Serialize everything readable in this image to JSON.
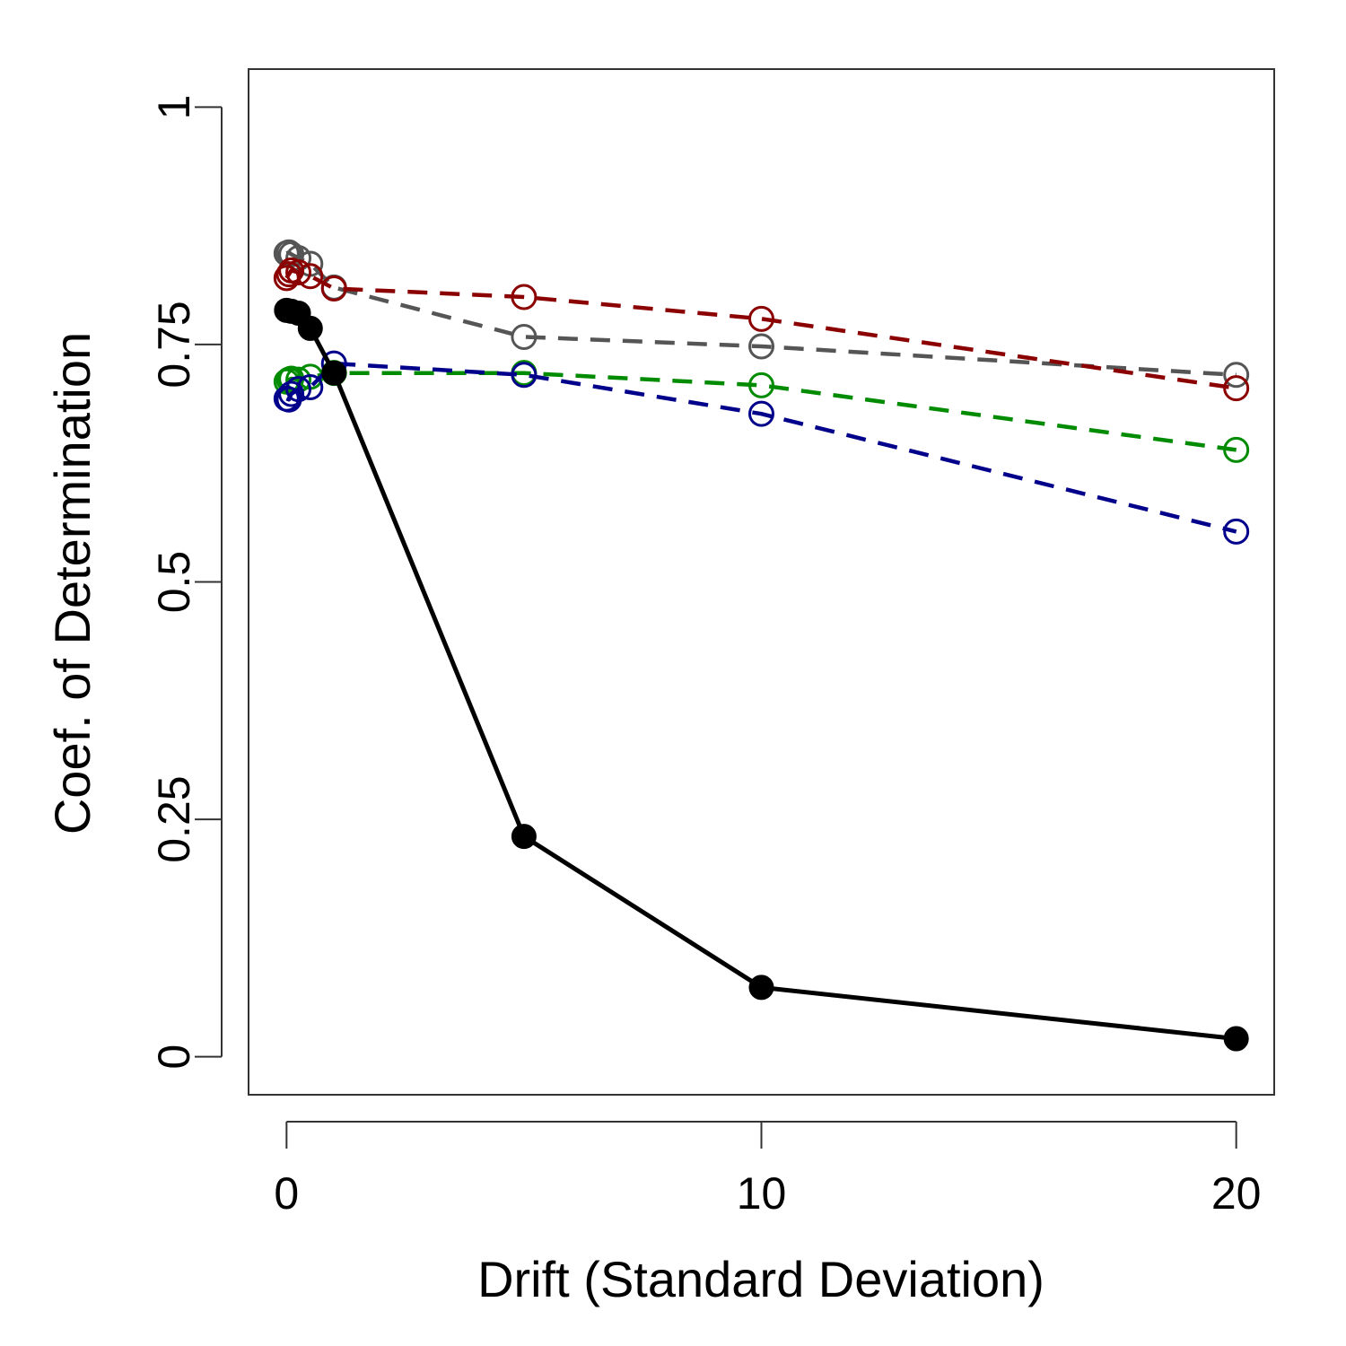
{
  "chart_data": {
    "type": "line",
    "xlabel": "Drift (Standard Deviation)",
    "ylabel": "Coef. of Determination",
    "xlim": [
      -0.8,
      20.8
    ],
    "ylim": [
      -0.04,
      1.04
    ],
    "xticks": [
      0,
      10,
      20
    ],
    "xtick_labels": [
      "0",
      "10",
      "20"
    ],
    "yticks": [
      0,
      0.25,
      0.5,
      0.75,
      1
    ],
    "ytick_labels": [
      "0",
      "0.25",
      "0.5",
      "0.75",
      "1"
    ],
    "grid": false,
    "legend": "none",
    "series": [
      {
        "color": "#555555",
        "line": "dashed",
        "marker": "open-circle",
        "points": [
          [
            0,
            0.846
          ],
          [
            0.05,
            0.847
          ],
          [
            0.1,
            0.845
          ],
          [
            0.25,
            0.841
          ],
          [
            0.5,
            0.835
          ],
          [
            1,
            0.81
          ],
          [
            5,
            0.758
          ],
          [
            10,
            0.748
          ],
          [
            20,
            0.718
          ]
        ]
      },
      {
        "color": "#8b0000",
        "line": "dashed",
        "marker": "open-circle",
        "points": [
          [
            0,
            0.82
          ],
          [
            0.05,
            0.824
          ],
          [
            0.1,
            0.828
          ],
          [
            0.25,
            0.826
          ],
          [
            0.5,
            0.822
          ],
          [
            1,
            0.809
          ],
          [
            5,
            0.8
          ],
          [
            10,
            0.777
          ],
          [
            20,
            0.704
          ]
        ]
      },
      {
        "color": "#008b00",
        "line": "dashed",
        "marker": "open-circle",
        "points": [
          [
            0,
            0.711
          ],
          [
            0.05,
            0.713
          ],
          [
            0.1,
            0.714
          ],
          [
            0.25,
            0.713
          ],
          [
            0.5,
            0.716
          ],
          [
            1,
            0.72
          ],
          [
            5,
            0.72
          ],
          [
            10,
            0.707
          ],
          [
            20,
            0.639
          ]
        ]
      },
      {
        "color": "#00008b",
        "line": "dashed",
        "marker": "open-circle",
        "points": [
          [
            0,
            0.693
          ],
          [
            0.05,
            0.692
          ],
          [
            0.1,
            0.698
          ],
          [
            0.25,
            0.703
          ],
          [
            0.5,
            0.705
          ],
          [
            1,
            0.73
          ],
          [
            5,
            0.718
          ],
          [
            10,
            0.677
          ],
          [
            20,
            0.553
          ]
        ]
      },
      {
        "color": "#000000",
        "line": "solid",
        "marker": "filled-circle",
        "points": [
          [
            0,
            0.786
          ],
          [
            0.1,
            0.785
          ],
          [
            0.25,
            0.783
          ],
          [
            0.5,
            0.767
          ],
          [
            1,
            0.72
          ],
          [
            5,
            0.232
          ],
          [
            10,
            0.073
          ],
          [
            20,
            0.019
          ]
        ]
      }
    ]
  }
}
